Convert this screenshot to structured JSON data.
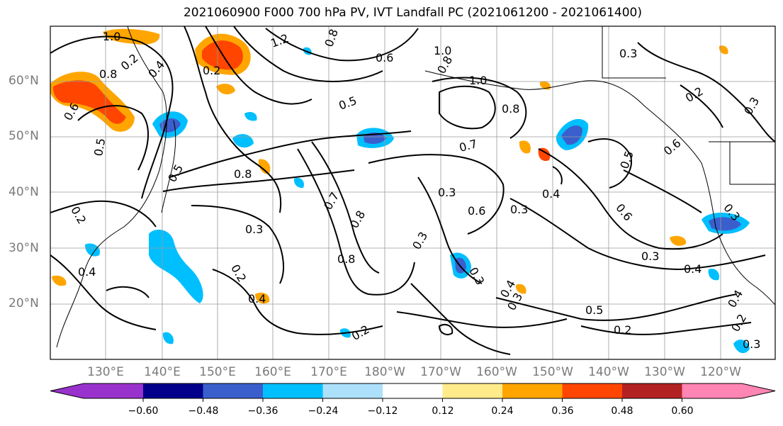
{
  "title": "2021060900 F000 700 hPa PV, IVT Landfall PC (2021061200 - 2021061400)",
  "latitude_labels": [
    "60°N",
    "50°N",
    "40°N",
    "30°N",
    "20°N"
  ],
  "longitude_labels": [
    "130°E",
    "140°E",
    "150°E",
    "160°E",
    "170°E",
    "180°W",
    "170°W",
    "160°W",
    "150°W",
    "140°W",
    "130°W",
    "120°W"
  ],
  "colorbar": {
    "tick_labels": [
      "−0.60",
      "−0.48",
      "−0.36",
      "−0.24",
      "−0.12",
      "0.12",
      "0.24",
      "0.36",
      "0.48",
      "0.60"
    ],
    "colors": [
      "#9932CC",
      "#00008B",
      "#3A5FCD",
      "#00BFFF",
      "#ADE0FA",
      "#FFFFFF",
      "#FFEB8A",
      "#FFA500",
      "#FF4500",
      "#B22222",
      "#FF85B4"
    ]
  },
  "contour_labels": [
    "1.0",
    "0.2",
    "0.8",
    "0.6",
    "0.4",
    "0.5",
    "1.2",
    "0.8",
    "0.6",
    "1.0",
    "0.8",
    "0.3",
    "0.2",
    "0.5",
    "1.0",
    "0.8",
    "0.7",
    "0.5",
    "0.6",
    "0.8",
    "0.3",
    "0.7",
    "0.8",
    "0.6",
    "0.4",
    "0.3",
    "0.5",
    "0.3",
    "0.6",
    "0.3",
    "0.4",
    "0.2",
    "0.4",
    "0.2",
    "0.3",
    "0.3",
    "0.5",
    "0.8",
    "0.3",
    "0.4",
    "0.2",
    "0.2",
    "0.3",
    "0.2",
    "0.4",
    "0.3",
    "0.2",
    "0.4",
    "0.3"
  ]
}
